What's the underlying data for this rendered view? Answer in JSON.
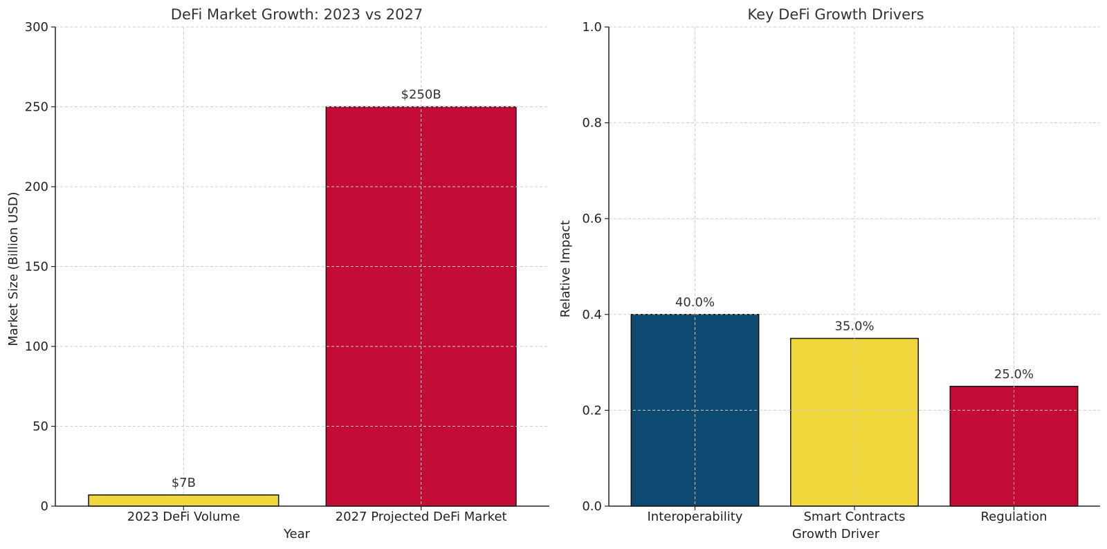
{
  "chart_data": [
    {
      "type": "bar",
      "title": "DeFi Market Growth: 2023 vs 2027",
      "xlabel": "Year",
      "ylabel": "Market Size (Billion USD)",
      "categories": [
        "2023 DeFi Volume",
        "2027 Projected DeFi Market"
      ],
      "values": [
        7,
        250
      ],
      "data_labels": [
        "$7B",
        "$250B"
      ],
      "colors": [
        "#F0D83C",
        "#C20C35"
      ],
      "ylim": [
        0,
        300
      ],
      "yticks": [
        "0",
        "50",
        "100",
        "150",
        "200",
        "250",
        "300"
      ],
      "grid": true
    },
    {
      "type": "bar",
      "title": "Key DeFi Growth Drivers",
      "xlabel": "Growth Driver",
      "ylabel": "Relative Impact",
      "categories": [
        "Interoperability",
        "Smart Contracts",
        "Regulation"
      ],
      "values": [
        0.4,
        0.35,
        0.25
      ],
      "data_labels": [
        "40.0%",
        "35.0%",
        "25.0%"
      ],
      "colors": [
        "#0D4A72",
        "#F0D83C",
        "#C20C35"
      ],
      "ylim": [
        0,
        1
      ],
      "yticks": [
        "0.0",
        "0.2",
        "0.4",
        "0.6",
        "0.8",
        "1.0"
      ],
      "grid": true
    }
  ]
}
